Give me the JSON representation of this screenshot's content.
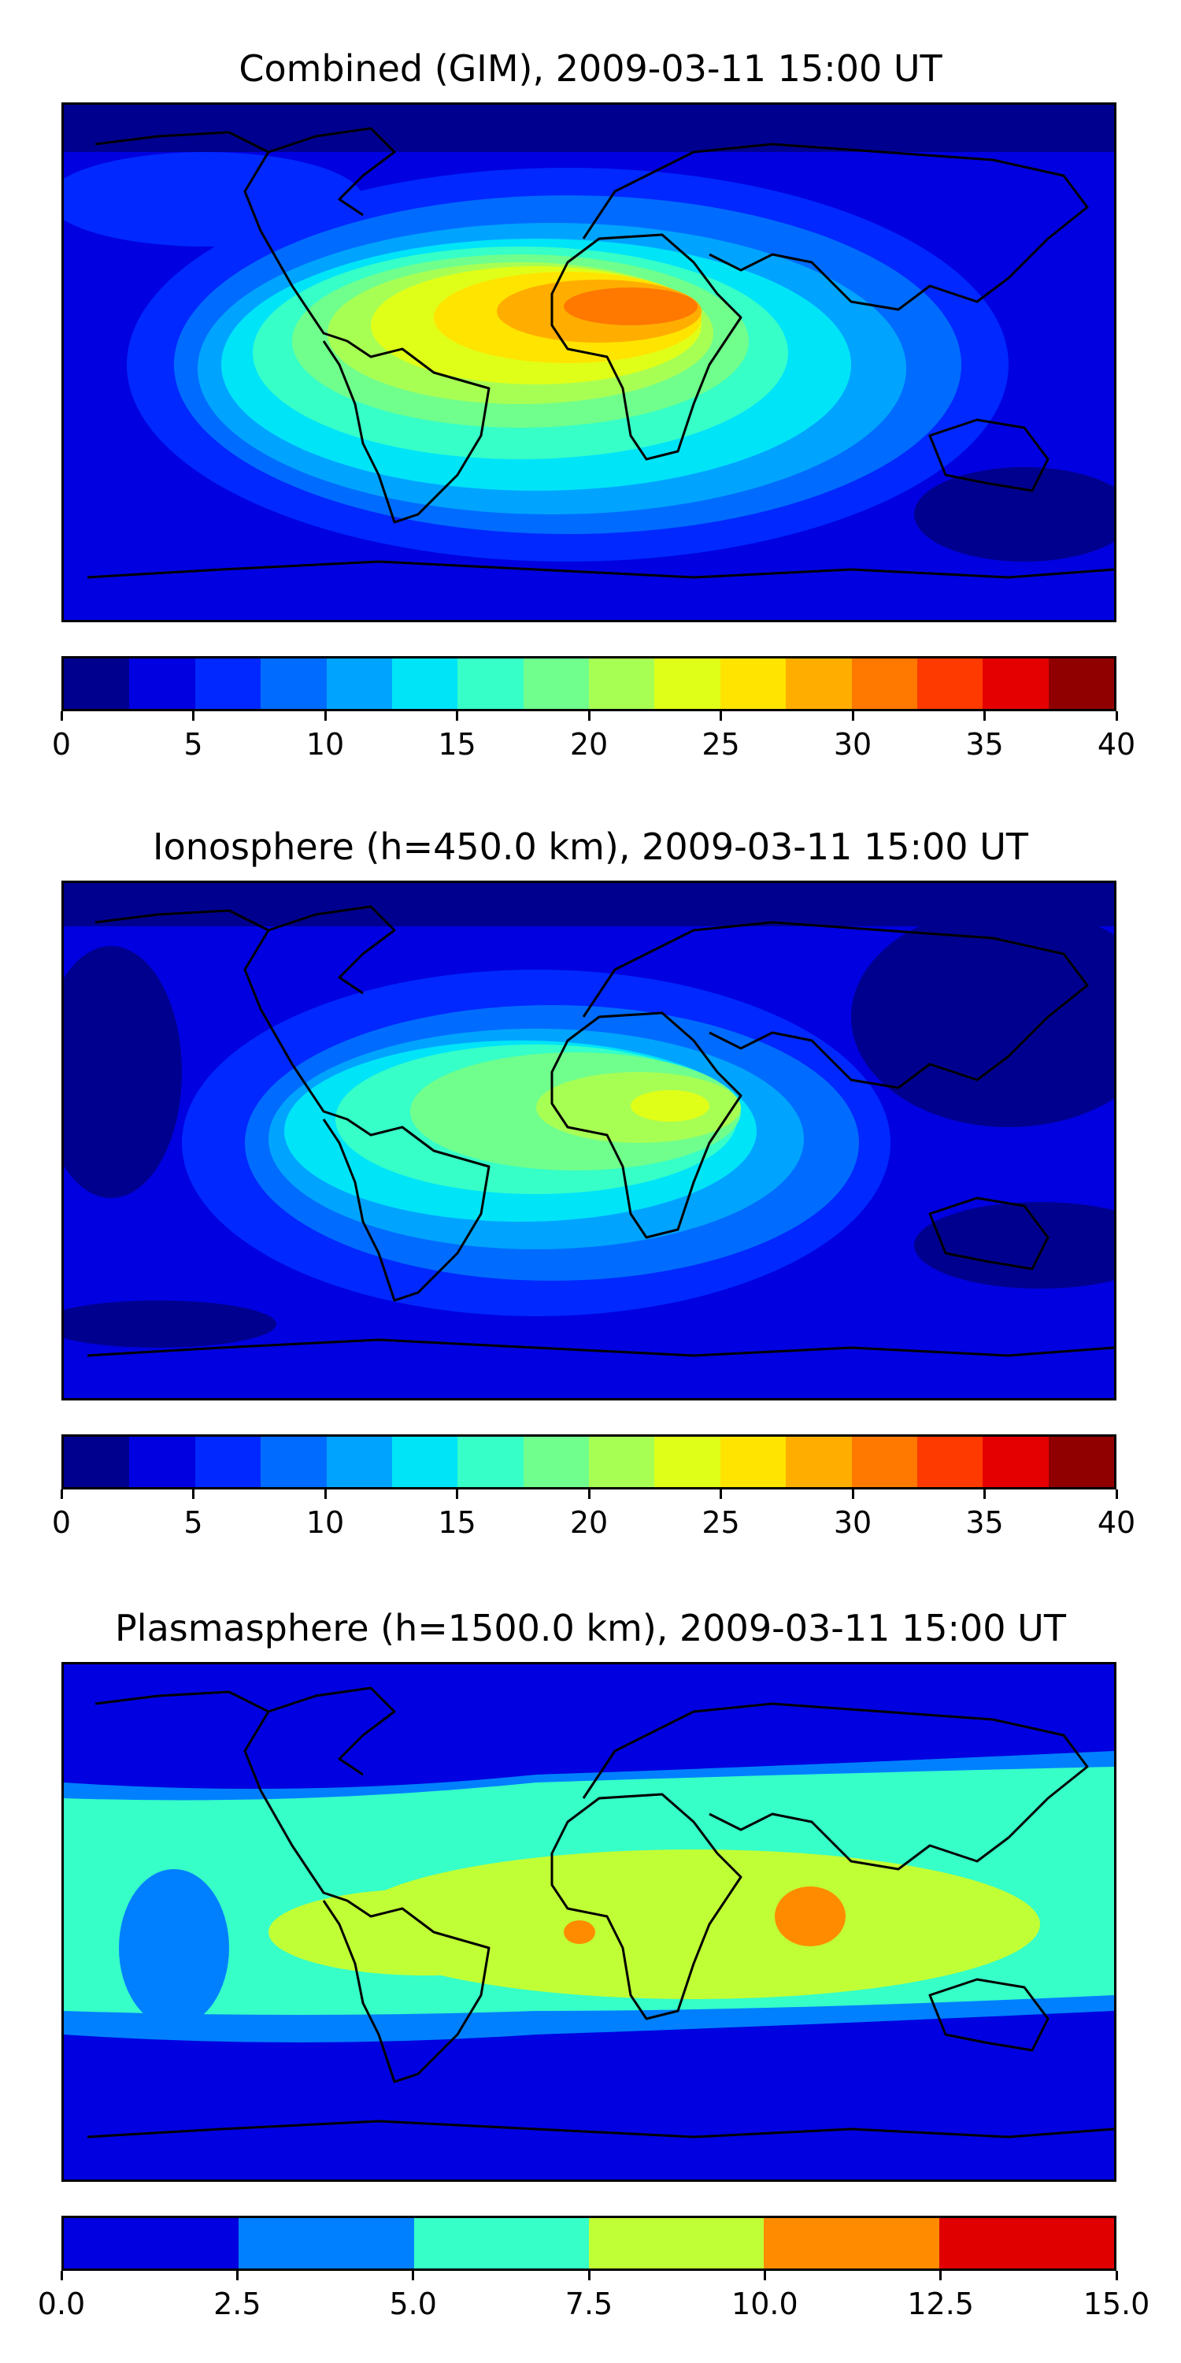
{
  "panels": [
    {
      "title": "Combined (GIM), 2009-03-11 15:00 UT",
      "colorbar": {
        "colors": [
          "#00008f",
          "#0000e0",
          "#0028ff",
          "#006cff",
          "#00a4ff",
          "#00e4f8",
          "#36ffc8",
          "#70ff8c",
          "#a8ff54",
          "#e0ff18",
          "#ffe400",
          "#ffae00",
          "#ff7800",
          "#ff3a00",
          "#e40000",
          "#900000"
        ],
        "ticks": [
          "0",
          "5",
          "10",
          "15",
          "20",
          "25",
          "30",
          "35",
          "40"
        ],
        "tick_values": [
          0,
          5,
          10,
          15,
          20,
          25,
          30,
          35,
          40
        ],
        "range": [
          0,
          40
        ]
      }
    },
    {
      "title": "Ionosphere  (h=450.0 km), 2009-03-11 15:00 UT",
      "colorbar": {
        "colors": [
          "#00008f",
          "#0000e0",
          "#0028ff",
          "#006cff",
          "#00a4ff",
          "#00e4f8",
          "#36ffc8",
          "#70ff8c",
          "#a8ff54",
          "#e0ff18",
          "#ffe400",
          "#ffae00",
          "#ff7800",
          "#ff3a00",
          "#e40000",
          "#900000"
        ],
        "ticks": [
          "0",
          "5",
          "10",
          "15",
          "20",
          "25",
          "30",
          "35",
          "40"
        ],
        "tick_values": [
          0,
          5,
          10,
          15,
          20,
          25,
          30,
          35,
          40
        ],
        "range": [
          0,
          40
        ]
      }
    },
    {
      "title": "Plasmasphere (h=1500.0 km), 2009-03-11 15:00 UT",
      "colorbar": {
        "colors": [
          "#0000e0",
          "#0080ff",
          "#36ffc8",
          "#c0ff36",
          "#ff8c00",
          "#e00000"
        ],
        "ticks": [
          "0.0",
          "2.5",
          "5.0",
          "7.5",
          "10.0",
          "12.5",
          "15.0"
        ],
        "tick_values": [
          0,
          2.5,
          5,
          7.5,
          10,
          12.5,
          15
        ],
        "range": [
          0,
          15
        ]
      }
    }
  ]
}
